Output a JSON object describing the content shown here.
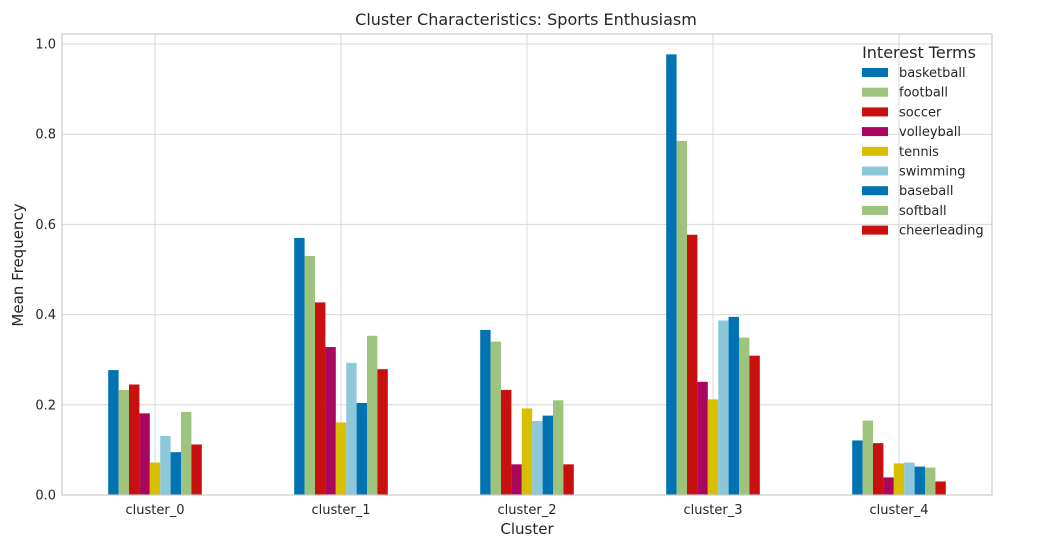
{
  "chart_data": {
    "type": "bar",
    "title": "Cluster Characteristics: Sports Enthusiasm",
    "xlabel": "Cluster",
    "ylabel": "Mean Frequency",
    "ylim": [
      0,
      1.0
    ],
    "yticks": [
      "0.0",
      "0.2",
      "0.4",
      "0.6",
      "0.8",
      "1.0"
    ],
    "grid": true,
    "legend_title": "Interest Terms",
    "legend_position": "top-right",
    "categories": [
      "cluster_0",
      "cluster_1",
      "cluster_2",
      "cluster_3",
      "cluster_4"
    ],
    "series": [
      {
        "name": "basketball",
        "color": "#0173b2",
        "values": [
          0.277,
          0.57,
          0.366,
          0.977,
          0.121
        ]
      },
      {
        "name": "football",
        "color": "#9ec37c",
        "values": [
          0.233,
          0.53,
          0.34,
          0.785,
          0.165
        ]
      },
      {
        "name": "soccer",
        "color": "#c8100f",
        "values": [
          0.245,
          0.427,
          0.233,
          0.577,
          0.115
        ]
      },
      {
        "name": "volleyball",
        "color": "#a9075f",
        "values": [
          0.181,
          0.328,
          0.068,
          0.251,
          0.039
        ]
      },
      {
        "name": "tennis",
        "color": "#d8c000",
        "values": [
          0.072,
          0.161,
          0.192,
          0.212,
          0.07
        ]
      },
      {
        "name": "swimming",
        "color": "#8dc8da",
        "values": [
          0.131,
          0.293,
          0.164,
          0.387,
          0.072
        ]
      },
      {
        "name": "baseball",
        "color": "#0173b2",
        "values": [
          0.095,
          0.204,
          0.176,
          0.395,
          0.063
        ]
      },
      {
        "name": "softball",
        "color": "#9ec37c",
        "values": [
          0.184,
          0.353,
          0.21,
          0.349,
          0.061
        ]
      },
      {
        "name": "cheerleading",
        "color": "#c8100f",
        "values": [
          0.112,
          0.279,
          0.068,
          0.309,
          0.03
        ]
      }
    ]
  }
}
